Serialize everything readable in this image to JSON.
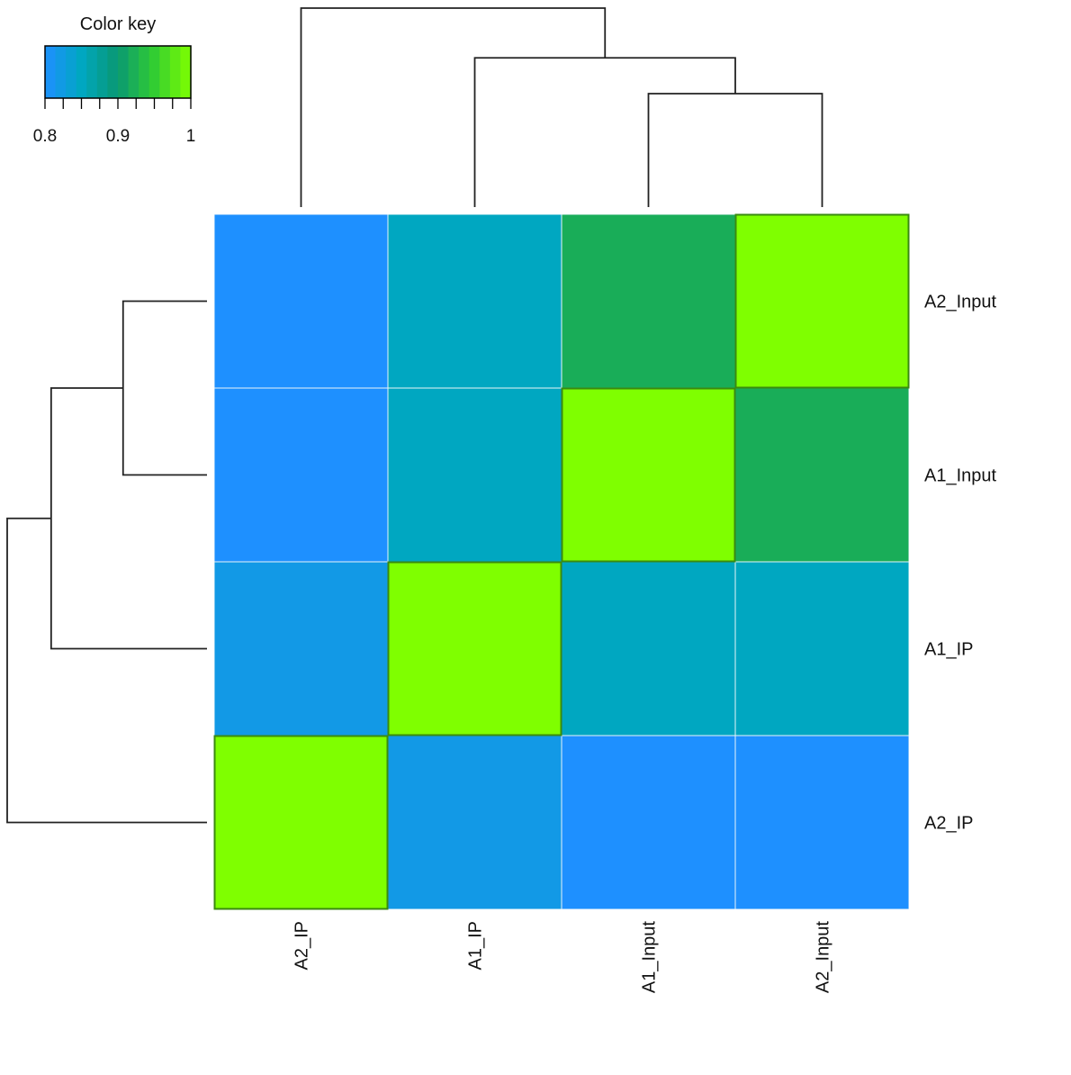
{
  "chart_data": {
    "type": "heatmap",
    "rows": [
      "A2_Input",
      "A1_Input",
      "A1_IP",
      "A2_IP"
    ],
    "columns": [
      "A2_IP",
      "A1_IP",
      "A1_Input",
      "A2_Input"
    ],
    "values": [
      [
        0.8,
        0.85,
        0.92,
        1.0
      ],
      [
        0.8,
        0.85,
        1.0,
        0.92
      ],
      [
        0.82,
        1.0,
        0.85,
        0.85
      ],
      [
        1.0,
        0.82,
        0.8,
        0.8
      ]
    ],
    "color_key": {
      "title": "Color key",
      "range": [
        0.8,
        1.0
      ],
      "tick_values": [
        0.8,
        0.9,
        1.0
      ],
      "tick_labels": [
        "0.8",
        "0.9",
        "1"
      ],
      "colors": [
        "#1e90ff",
        "#00a7c1",
        "#099872",
        "#32cd32",
        "#7fff00"
      ]
    },
    "row_dendrogram": {
      "merges": [
        [
          "A2_Input",
          "A1_Input"
        ],
        [
          "A2_Input+A1_Input",
          "A1_IP"
        ],
        [
          "A2_Input+A1_Input+A1_IP",
          "A2_IP"
        ]
      ],
      "heights": [
        0.42,
        0.78,
        1.0
      ]
    },
    "col_dendrogram": {
      "merges": [
        [
          "A1_Input",
          "A2_Input"
        ],
        [
          "A1_IP",
          "A1_Input+A2_Input"
        ],
        [
          "A2_IP",
          "A1_IP+A1_Input+A2_Input"
        ]
      ],
      "heights": [
        0.57,
        0.75,
        1.0
      ]
    },
    "legend_position": "top-left"
  }
}
